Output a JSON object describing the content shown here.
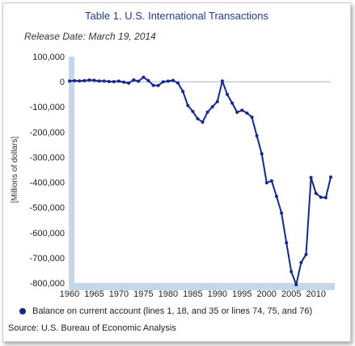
{
  "title": "Table 1. U.S. International Transactions",
  "subtitle": "Release Date: March 19, 2014",
  "legend_label": "Balance on current account (lines 1, 18, and 35 or lines 74, 75, and 76)",
  "source": "Source: U.S. Bureau of Economic Analysis",
  "colors": {
    "series": "#15288c",
    "shade": "#c5d7e9",
    "zero_line": "#9fb6c9"
  },
  "chart_data": {
    "type": "line",
    "title": "Table 1. U.S. International Transactions",
    "ylabel": "[Millions of dollars]",
    "xlabel": "",
    "ylim": [
      -800000,
      100000
    ],
    "xlim": [
      1960,
      2013
    ],
    "y_ticks": [
      "100,000",
      "0",
      "-100,000",
      "-200,000",
      "-300,000",
      "-400,000",
      "-500,000",
      "-600,000",
      "-700,000",
      "-800,000"
    ],
    "y_tick_values": [
      100000,
      0,
      -100000,
      -200000,
      -300000,
      -400000,
      -500000,
      -600000,
      -700000,
      -800000
    ],
    "x_ticks": [
      "1960",
      "1965",
      "1970",
      "1975",
      "1980",
      "1985",
      "1990",
      "1995",
      "2000",
      "2005",
      "2010"
    ],
    "x_tick_values": [
      1960,
      1965,
      1970,
      1975,
      1980,
      1985,
      1990,
      1995,
      2000,
      2005,
      2010
    ],
    "grid": false,
    "legend_position": "bottom",
    "series": [
      {
        "name": "Balance on current account (lines 1, 18, and 35 or lines 74, 75, and 76)",
        "x": [
          1960,
          1961,
          1962,
          1963,
          1964,
          1965,
          1966,
          1967,
          1968,
          1969,
          1970,
          1971,
          1972,
          1973,
          1974,
          1975,
          1976,
          1977,
          1978,
          1979,
          1980,
          1981,
          1982,
          1983,
          1984,
          1985,
          1986,
          1987,
          1988,
          1989,
          1990,
          1991,
          1992,
          1993,
          1994,
          1995,
          1996,
          1997,
          1998,
          1999,
          2000,
          2001,
          2002,
          2003,
          2004,
          2005,
          2006,
          2007,
          2008,
          2009,
          2010,
          2011,
          2012,
          2013
        ],
        "values": [
          2824,
          3822,
          3387,
          4414,
          6823,
          5431,
          3031,
          2583,
          611,
          399,
          2331,
          -1433,
          -5795,
          7140,
          1962,
          18116,
          4295,
          -14335,
          -15143,
          -285,
          2317,
          5030,
          -5536,
          -38691,
          -94344,
          -118155,
          -147177,
          -160655,
          -121153,
          -99486,
          -78968,
          2897,
          -50078,
          -84806,
          -121612,
          -113567,
          -124764,
          -140726,
          -215062,
          -286617,
          -401870,
          -394110,
          -456087,
          -522101,
          -640148,
          -754848,
          -806726,
          -718643,
          -686641,
          -380792,
          -443930,
          -459344,
          -460750,
          -379283
        ]
      }
    ]
  }
}
